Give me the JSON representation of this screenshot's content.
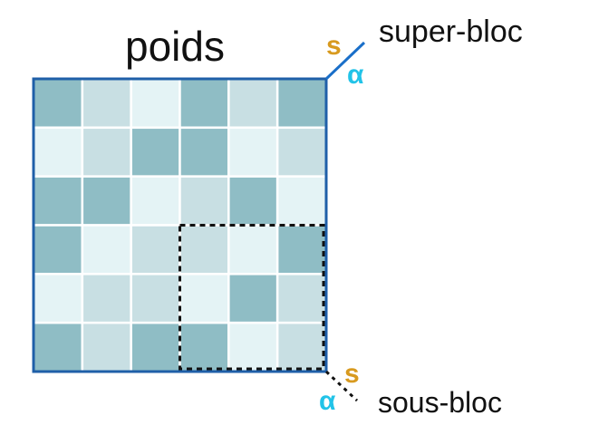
{
  "title": "poids",
  "super_block": {
    "label": "super-bloc",
    "s_symbol": "s",
    "alpha_symbol": "α"
  },
  "sub_block": {
    "label": "sous-bloc",
    "s_symbol": "s",
    "alpha_symbol": "α"
  },
  "colors": {
    "shades": [
      "#e4f3f5",
      "#c8dfe3",
      "#8fbdc5"
    ],
    "frame": "#1f5fa8",
    "connector": "#1a6fc9",
    "s_color": "#d89a1f",
    "alpha_color": "#22c3e8",
    "cell_border": "#ffffff",
    "dashed": "#111111"
  },
  "grid": {
    "rows": 6,
    "cols": 6,
    "levels": [
      [
        2,
        1,
        0,
        2,
        1,
        2
      ],
      [
        0,
        1,
        2,
        2,
        0,
        1
      ],
      [
        2,
        2,
        0,
        1,
        2,
        0
      ],
      [
        2,
        0,
        1,
        1,
        0,
        2
      ],
      [
        0,
        1,
        1,
        0,
        2,
        1
      ],
      [
        2,
        1,
        2,
        2,
        0,
        1
      ]
    ],
    "sub_block": {
      "row_start": 3,
      "col_start": 3,
      "size": 3
    }
  }
}
